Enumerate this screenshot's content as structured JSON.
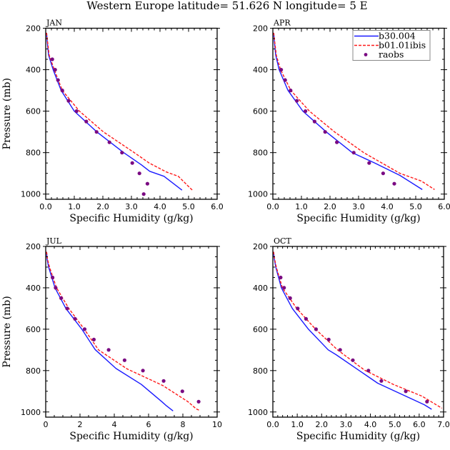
{
  "figure": {
    "title": "Western Europe  latitude= 51.626 N longitude= 5 E"
  },
  "legend": {
    "entries": [
      {
        "label": "b30.004",
        "style": "solid",
        "color": "#1a1aff"
      },
      {
        "label": "b01.01ibis",
        "style": "dashed",
        "color": "#ff1a1a"
      },
      {
        "label": "raobs",
        "style": "marker",
        "color": "#7a0a82"
      }
    ]
  },
  "colors": {
    "model1": "#1a1aff",
    "model2": "#ff1a1a",
    "obs": "#7a0a82",
    "axis": "#000000"
  },
  "chart_data": [
    {
      "type": "line",
      "panel": "JAN",
      "title": "JAN",
      "xlabel": "Specific Humidity (g/kg)",
      "ylabel": "Pressure (mb)",
      "xlim": [
        0,
        6
      ],
      "ylim": [
        200,
        1025
      ],
      "y_inverted": true,
      "xticks": [
        0,
        1,
        2,
        3,
        4,
        5,
        6
      ],
      "xtick_labels": [
        "0.0",
        "1.0",
        "2.0",
        "3.0",
        "4.0",
        "5.0",
        "6.0"
      ],
      "x_minor_step": 0.2,
      "yticks": [
        200,
        400,
        600,
        800,
        1000
      ],
      "ytick_labels": [
        "200",
        "400",
        "600",
        "800",
        "1000"
      ],
      "y_minor_step": 50,
      "show_ylabel": true,
      "legend": false,
      "series": [
        {
          "name": "b30.004",
          "style": "solid",
          "x": [
            0.03,
            0.05,
            0.1,
            0.26,
            0.54,
            1.0,
            1.79,
            2.73,
            3.35,
            3.64,
            4.14,
            4.77
          ],
          "y": [
            222,
            260,
            330,
            400,
            500,
            600,
            700,
            800,
            859,
            890,
            914,
            981
          ]
        },
        {
          "name": "b01.01ibis",
          "style": "dashed",
          "x": [
            0.03,
            0.06,
            0.12,
            0.3,
            0.58,
            1.18,
            2.02,
            3.1,
            3.62,
            4.22,
            4.64,
            5.13
          ],
          "y": [
            222,
            260,
            330,
            400,
            500,
            600,
            700,
            800,
            850,
            893,
            914,
            981
          ]
        },
        {
          "name": "raobs",
          "style": "marker",
          "x": [
            0.23,
            0.33,
            0.43,
            0.58,
            0.8,
            1.08,
            1.42,
            1.78,
            2.23,
            2.67,
            3.03,
            3.28,
            3.56,
            3.43
          ],
          "y": [
            350,
            400,
            450,
            500,
            550,
            600,
            650,
            700,
            750,
            800,
            850,
            900,
            950,
            1000
          ]
        }
      ]
    },
    {
      "type": "line",
      "panel": "APR",
      "title": "APR",
      "xlabel": "Specific Humidity (g/kg)",
      "ylabel": "",
      "xlim": [
        0,
        6
      ],
      "ylim": [
        200,
        1025
      ],
      "y_inverted": true,
      "xticks": [
        0,
        1,
        2,
        3,
        4,
        5,
        6
      ],
      "xtick_labels": [
        "0.0",
        "1.0",
        "2.0",
        "3.0",
        "4.0",
        "5.0",
        "6.0"
      ],
      "x_minor_step": 0.2,
      "yticks": [
        200,
        400,
        600,
        800,
        1000
      ],
      "ytick_labels": [
        "200",
        "400",
        "600",
        "800",
        "1000"
      ],
      "y_minor_step": 50,
      "show_ylabel": false,
      "legend": true,
      "legend_position": "top-right",
      "series": [
        {
          "name": "b30.004",
          "style": "solid",
          "x": [
            0.03,
            0.05,
            0.1,
            0.22,
            0.53,
            1.05,
            1.87,
            2.78,
            3.58,
            4.45,
            5.23
          ],
          "y": [
            222,
            260,
            330,
            400,
            500,
            600,
            700,
            800,
            851,
            910,
            978
          ]
        },
        {
          "name": "b01.01ibis",
          "style": "dashed",
          "x": [
            0.03,
            0.06,
            0.12,
            0.27,
            0.63,
            1.28,
            2.16,
            3.18,
            4.45,
            5.2,
            5.66
          ],
          "y": [
            222,
            260,
            330,
            400,
            500,
            600,
            700,
            800,
            900,
            937,
            978
          ]
        },
        {
          "name": "raobs",
          "style": "marker",
          "x": [
            0.29,
            0.43,
            0.62,
            0.84,
            1.14,
            1.46,
            1.83,
            2.24,
            2.83,
            3.37,
            3.86,
            4.25
          ],
          "y": [
            400,
            450,
            500,
            550,
            600,
            650,
            700,
            750,
            800,
            850,
            900,
            950
          ]
        }
      ]
    },
    {
      "type": "line",
      "panel": "JUL",
      "title": "JUL",
      "xlabel": "Specific Humidity (g/kg)",
      "ylabel": "Pressure (mb)",
      "xlim": [
        0,
        10
      ],
      "ylim": [
        200,
        1025
      ],
      "y_inverted": true,
      "xticks": [
        0,
        2,
        4,
        6,
        8,
        10
      ],
      "xtick_labels": [
        "0",
        "2",
        "4",
        "6",
        "8",
        "10"
      ],
      "x_minor_step": 0.5,
      "yticks": [
        200,
        400,
        600,
        800,
        1000
      ],
      "ytick_labels": [
        "200",
        "400",
        "600",
        "800",
        "1000"
      ],
      "y_minor_step": 50,
      "show_ylabel": true,
      "legend": false,
      "series": [
        {
          "name": "b30.004",
          "style": "solid",
          "x": [
            0.05,
            0.08,
            0.17,
            0.54,
            1.18,
            2.11,
            2.88,
            4.1,
            5.58,
            6.77,
            7.04,
            7.43
          ],
          "y": [
            226,
            260,
            300,
            400,
            500,
            600,
            698,
            790,
            867,
            950,
            970,
            995
          ]
        },
        {
          "name": "b01.01ibis",
          "style": "dashed",
          "x": [
            0.05,
            0.1,
            0.22,
            0.63,
            1.35,
            2.25,
            3.08,
            4.75,
            6.83,
            8.29,
            8.78,
            8.99
          ],
          "y": [
            226,
            260,
            300,
            400,
            500,
            600,
            700,
            792,
            872,
            950,
            985,
            993
          ]
        },
        {
          "name": "raobs",
          "style": "marker",
          "x": [
            0.4,
            0.58,
            0.9,
            1.25,
            1.71,
            2.27,
            2.81,
            3.67,
            4.6,
            5.67,
            6.88,
            7.97,
            8.92
          ],
          "y": [
            350,
            400,
            450,
            500,
            550,
            600,
            650,
            700,
            750,
            800,
            850,
            900,
            950
          ]
        }
      ]
    },
    {
      "type": "line",
      "panel": "OCT",
      "title": "OCT",
      "xlabel": "Specific Humidity (g/kg)",
      "ylabel": "",
      "xlim": [
        0,
        7
      ],
      "ylim": [
        200,
        1025
      ],
      "y_inverted": true,
      "xticks": [
        0,
        1,
        2,
        3,
        4,
        5,
        6,
        7
      ],
      "xtick_labels": [
        "0.0",
        "1.0",
        "2.0",
        "3.0",
        "4.0",
        "5.0",
        "6.0",
        "7.0"
      ],
      "x_minor_step": 0.2,
      "yticks": [
        200,
        400,
        600,
        800,
        1000
      ],
      "ytick_labels": [
        "200",
        "400",
        "600",
        "800",
        "1000"
      ],
      "y_minor_step": 50,
      "show_ylabel": false,
      "legend": false,
      "series": [
        {
          "name": "b30.004",
          "style": "solid",
          "x": [
            0.03,
            0.06,
            0.12,
            0.35,
            0.8,
            1.46,
            2.27,
            2.59,
            4.3,
            6.21,
            6.51
          ],
          "y": [
            226,
            260,
            300,
            400,
            500,
            600,
            700,
            723,
            861,
            965,
            987
          ]
        },
        {
          "name": "b01.01ibis",
          "style": "dashed",
          "x": [
            0.03,
            0.07,
            0.14,
            0.39,
            0.98,
            1.75,
            2.65,
            3.76,
            4.94,
            6.12,
            6.93
          ],
          "y": [
            226,
            260,
            300,
            400,
            500,
            600,
            700,
            798,
            867,
            924,
            982
          ]
        },
        {
          "name": "raobs",
          "style": "marker",
          "x": [
            0.32,
            0.46,
            0.71,
            1.02,
            1.36,
            1.77,
            2.29,
            2.76,
            3.28,
            3.92,
            4.45,
            5.45,
            6.32
          ],
          "y": [
            350,
            400,
            450,
            500,
            550,
            600,
            650,
            700,
            750,
            800,
            850,
            900,
            950
          ]
        }
      ]
    }
  ]
}
